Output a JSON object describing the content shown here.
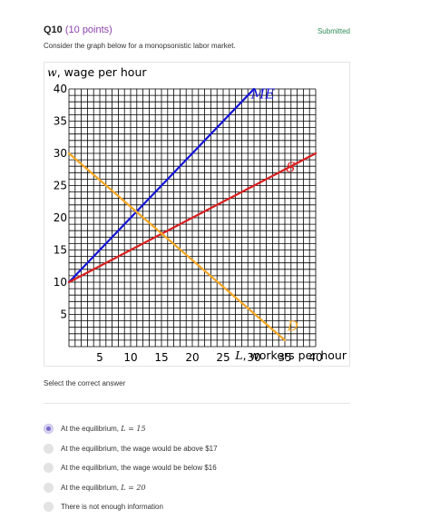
{
  "question": {
    "number": "Q10",
    "points": "(10 points)",
    "status": "Submitted",
    "prompt": "Consider the graph below for a monopsonistic labor market."
  },
  "chart_data": {
    "type": "line",
    "ylabel": "w, wage per hour",
    "xlabel": "L, workers per hour",
    "xlim": [
      0,
      40
    ],
    "ylim": [
      0,
      40
    ],
    "x_ticks": [
      5,
      10,
      15,
      20,
      25,
      30,
      35,
      40
    ],
    "y_ticks": [
      5,
      10,
      15,
      20,
      25,
      30,
      35,
      40
    ],
    "grid": true,
    "series": [
      {
        "name": "ME",
        "color": "#1414d6",
        "x": [
          0,
          30
        ],
        "y": [
          10,
          40
        ]
      },
      {
        "name": "S",
        "color": "#d81e1e",
        "x": [
          0,
          40
        ],
        "y": [
          10,
          30
        ]
      },
      {
        "name": "D",
        "color": "#f5a623",
        "x": [
          0,
          35
        ],
        "y": [
          30,
          1
        ]
      }
    ]
  },
  "answers": {
    "label": "Select the correct answer",
    "options": [
      {
        "text": "At the equilibrium, ",
        "math": "L = 15",
        "selected": true
      },
      {
        "text": "At the equilibrium, the wage would be above $17",
        "math": "",
        "selected": false
      },
      {
        "text": "At the equilibrium, the wage would be below $16",
        "math": "",
        "selected": false
      },
      {
        "text": "At the equilibrium, ",
        "math": "L = 20",
        "selected": false
      },
      {
        "text": "There is not enough information",
        "math": "",
        "selected": false
      }
    ]
  }
}
